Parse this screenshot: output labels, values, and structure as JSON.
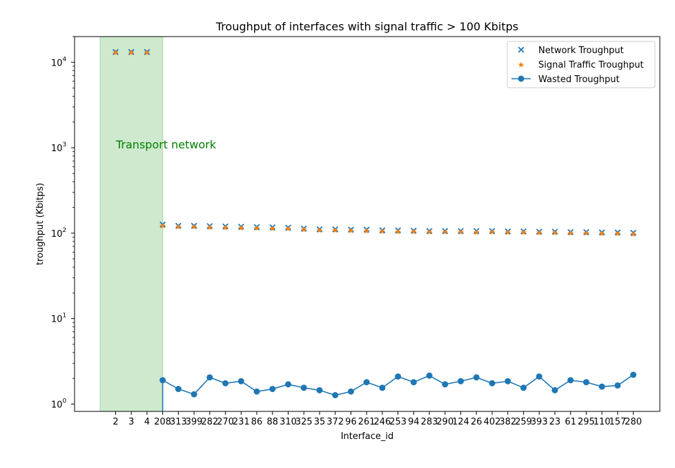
{
  "chart_data": {
    "type": "scatter",
    "title": "Troughput of interfaces with signal traffic > 100 Kbitps",
    "xlabel": "Interface_id",
    "ylabel": "troughput (Kbitps)",
    "yscale": "log",
    "ylim": [
      0.82,
      20000
    ],
    "yticks": [
      {
        "value": 1,
        "base": "10",
        "exp": "0"
      },
      {
        "value": 10,
        "base": "10",
        "exp": "1"
      },
      {
        "value": 100,
        "base": "10",
        "exp": "2"
      },
      {
        "value": 1000,
        "base": "10",
        "exp": "3"
      },
      {
        "value": 10000,
        "base": "10",
        "exp": "4"
      }
    ],
    "categories": [
      "2",
      "3",
      "4",
      "208",
      "313",
      "399",
      "282",
      "270",
      "231",
      "86",
      "88",
      "310",
      "325",
      "35",
      "372",
      "96",
      "261",
      "246",
      "253",
      "94",
      "283",
      "290",
      "124",
      "26",
      "402",
      "382",
      "259",
      "393",
      "23",
      "61",
      "295",
      "110",
      "157",
      "280"
    ],
    "series": [
      {
        "name": "Network Troughput",
        "marker": "x",
        "color": "#1f77b4",
        "values": [
          13200,
          13200,
          13200,
          126,
          122,
          122,
          121,
          120,
          119,
          118,
          117,
          116,
          113,
          111,
          111,
          110,
          110,
          108,
          108,
          107,
          106,
          106,
          106,
          106,
          106,
          105,
          105,
          104,
          104,
          103,
          103,
          102,
          102,
          101
        ]
      },
      {
        "name": "Signal Traffic Troughput",
        "marker": "star",
        "color": "#ff7f0e",
        "values": [
          13200,
          13200,
          13200,
          124,
          121,
          121,
          119,
          118,
          117,
          116,
          115,
          115,
          112,
          110,
          110,
          109,
          108,
          107,
          106,
          106,
          105,
          105,
          105,
          104,
          105,
          104,
          104,
          103,
          103,
          102,
          102,
          101,
          101,
          99
        ]
      },
      {
        "name": "Wasted Troughput",
        "marker": "o-line",
        "color": "#1f77b4",
        "values": [
          null,
          null,
          null,
          1.9,
          1.5,
          1.3,
          2.05,
          1.75,
          1.85,
          1.4,
          1.5,
          1.7,
          1.55,
          1.45,
          1.27,
          1.4,
          1.8,
          1.55,
          2.1,
          1.8,
          2.15,
          1.7,
          1.85,
          2.05,
          1.75,
          1.85,
          1.55,
          2.1,
          1.45,
          1.9,
          1.8,
          1.6,
          1.65,
          2.2
        ]
      }
    ],
    "highlight": {
      "label": "Transport network",
      "color": "#2ca02c",
      "categories": [
        "2",
        "3",
        "4"
      ]
    },
    "legend_position": "top-right",
    "grid": false
  }
}
